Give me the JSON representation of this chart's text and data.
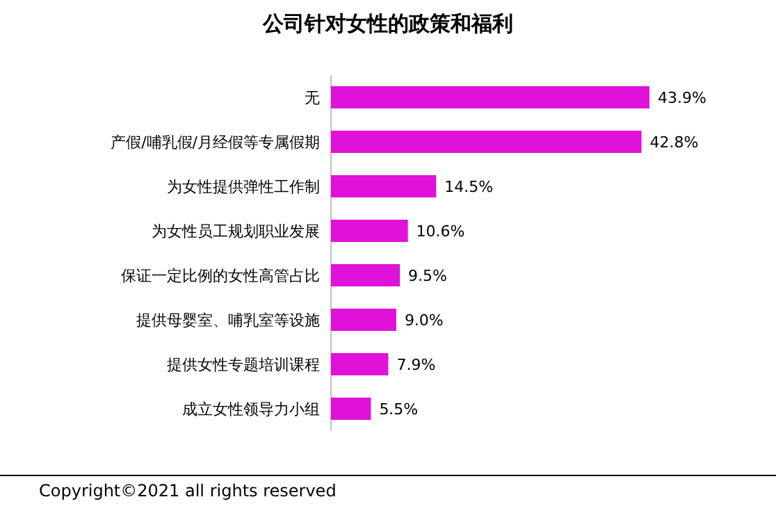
{
  "chart_data": {
    "type": "bar",
    "orientation": "horizontal",
    "title": "公司针对女性的政策和福利",
    "categories": [
      "无",
      "产假/哺乳假/月经假等专属假期",
      "为女性提供弹性工作制",
      "为女性员工规划职业发展",
      "保证一定比例的女性高管占比",
      "提供母婴室、哺乳室等设施",
      "提供女性专题培训课程",
      "成立女性领导力小组"
    ],
    "values": [
      43.9,
      42.8,
      14.5,
      10.6,
      9.5,
      9.0,
      7.9,
      5.5
    ],
    "value_labels": [
      "43.9%",
      "42.8%",
      "14.5%",
      "10.6%",
      "9.5%",
      "9.0%",
      "7.9%",
      "5.5%"
    ],
    "color": "#e011d8",
    "annotations": [
      "Copyright©2021 all rights reserved"
    ]
  }
}
